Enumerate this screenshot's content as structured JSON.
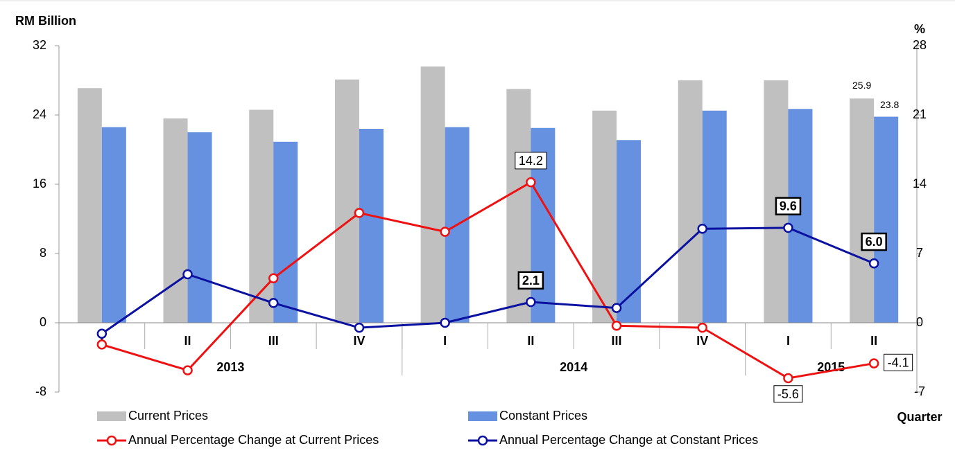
{
  "chart_data": {
    "type": "bar-line",
    "y_label": "RM Billion",
    "y2_label": "%",
    "x_label": "Quarter",
    "categories": [
      "I",
      "II",
      "III",
      "IV",
      "I",
      "II",
      "III",
      "IV",
      "I",
      "II"
    ],
    "years": [
      "2013",
      "2014",
      "2015"
    ],
    "year_spans": [
      4,
      4,
      2
    ],
    "ylim": [
      -8,
      32
    ],
    "yticks": [
      -8,
      0,
      8,
      16,
      24,
      32
    ],
    "y2lim": [
      -7,
      28
    ],
    "y2ticks": [
      -7,
      0,
      7,
      14,
      21,
      28
    ],
    "series": [
      {
        "name": "Current Prices",
        "kind": "bar",
        "color": "#c0c0c0",
        "values": [
          27.1,
          23.6,
          24.6,
          28.1,
          29.6,
          27.0,
          24.5,
          28.0,
          28.0,
          25.9
        ],
        "value_labels": [
          null,
          null,
          null,
          null,
          null,
          null,
          null,
          null,
          null,
          "25.9"
        ]
      },
      {
        "name": "Constant Prices",
        "kind": "bar",
        "color": "#6690e0",
        "values": [
          22.6,
          22.0,
          20.9,
          22.4,
          22.6,
          22.5,
          21.1,
          24.5,
          24.7,
          23.8
        ],
        "value_labels": [
          null,
          null,
          null,
          null,
          null,
          null,
          null,
          null,
          null,
          "23.8"
        ]
      },
      {
        "name": "Annual Percentage Change at Current Prices",
        "kind": "line",
        "axis": "y2",
        "color": "#ee1111",
        "values": [
          -2.2,
          -4.8,
          4.5,
          11.1,
          9.2,
          14.2,
          -0.3,
          -0.5,
          -5.6,
          -4.1
        ],
        "value_labels": [
          null,
          null,
          null,
          null,
          null,
          "14.2",
          null,
          null,
          "-5.6",
          "-4.1"
        ]
      },
      {
        "name": "Annual Percentage Change at Constant Prices",
        "kind": "line",
        "axis": "y2",
        "color": "#0a10a0",
        "values": [
          -1.1,
          4.9,
          2.0,
          -0.5,
          0.0,
          2.1,
          1.5,
          9.5,
          9.6,
          6.0
        ],
        "value_labels": [
          null,
          null,
          null,
          null,
          null,
          "2.1",
          null,
          null,
          "9.6",
          "6.0"
        ]
      }
    ]
  }
}
